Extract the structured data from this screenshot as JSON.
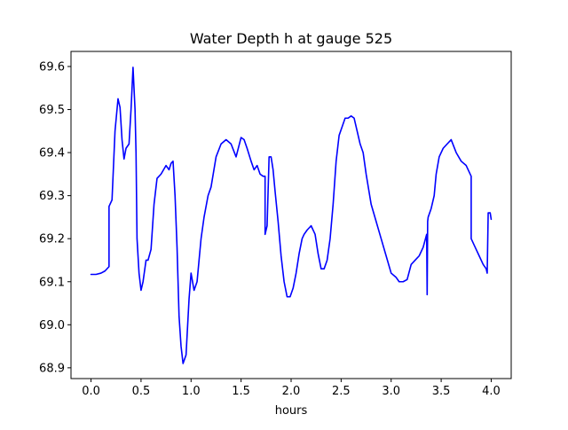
{
  "chart_data": {
    "type": "line",
    "title": "Water Depth h at gauge 525",
    "xlabel": "hours",
    "ylabel": "",
    "xlim": [
      -0.2,
      4.2
    ],
    "ylim": [
      68.875,
      69.635
    ],
    "xticks": [
      0.0,
      0.5,
      1.0,
      1.5,
      2.0,
      2.5,
      3.0,
      3.5,
      4.0
    ],
    "xtick_labels": [
      "0.0",
      "0.5",
      "1.0",
      "1.5",
      "2.0",
      "2.5",
      "3.0",
      "3.5",
      "4.0"
    ],
    "yticks": [
      68.9,
      69.0,
      69.1,
      69.2,
      69.3,
      69.4,
      69.5,
      69.6
    ],
    "ytick_labels": [
      "68.9",
      "69.0",
      "69.1",
      "69.2",
      "69.3",
      "69.4",
      "69.5",
      "69.6"
    ],
    "grid": false,
    "series": [
      {
        "color": "#0000ff",
        "x": [
          0.0,
          0.05,
          0.1,
          0.14,
          0.18,
          0.18,
          0.21,
          0.24,
          0.27,
          0.29,
          0.31,
          0.33,
          0.35,
          0.38,
          0.4,
          0.42,
          0.44,
          0.45,
          0.46,
          0.48,
          0.5,
          0.52,
          0.55,
          0.57,
          0.6,
          0.63,
          0.66,
          0.7,
          0.75,
          0.78,
          0.8,
          0.82,
          0.84,
          0.86,
          0.88,
          0.9,
          0.92,
          0.95,
          0.98,
          1.0,
          1.03,
          1.06,
          1.08,
          1.1,
          1.13,
          1.17,
          1.2,
          1.25,
          1.3,
          1.35,
          1.4,
          1.45,
          1.5,
          1.53,
          1.56,
          1.6,
          1.63,
          1.66,
          1.69,
          1.72,
          1.74,
          1.74,
          1.76,
          1.78,
          1.8,
          1.82,
          1.84,
          1.87,
          1.9,
          1.93,
          1.96,
          1.99,
          2.02,
          2.05,
          2.08,
          2.11,
          2.13,
          2.16,
          2.2,
          2.24,
          2.27,
          2.3,
          2.33,
          2.36,
          2.39,
          2.42,
          2.45,
          2.48,
          2.51,
          2.54,
          2.57,
          2.6,
          2.63,
          2.66,
          2.69,
          2.72,
          2.75,
          2.8,
          2.85,
          2.9,
          2.95,
          3.0,
          3.05,
          3.08,
          3.12,
          3.16,
          3.2,
          3.24,
          3.28,
          3.32,
          3.355,
          3.36,
          3.365,
          3.37,
          3.4,
          3.43,
          3.45,
          3.48,
          3.52,
          3.56,
          3.6,
          3.65,
          3.7,
          3.75,
          3.8,
          3.8,
          3.84,
          3.88,
          3.92,
          3.95,
          3.96,
          3.97,
          3.99,
          4.0
        ],
        "y": [
          69.117,
          69.117,
          69.12,
          69.125,
          69.135,
          69.275,
          69.29,
          69.45,
          69.525,
          69.505,
          69.43,
          69.385,
          69.41,
          69.42,
          69.5,
          69.598,
          69.5,
          69.4,
          69.2,
          69.12,
          69.08,
          69.1,
          69.15,
          69.15,
          69.175,
          69.28,
          69.34,
          69.35,
          69.37,
          69.36,
          69.375,
          69.38,
          69.3,
          69.18,
          69.02,
          68.95,
          68.91,
          68.93,
          69.06,
          69.12,
          69.08,
          69.1,
          69.15,
          69.2,
          69.25,
          69.3,
          69.32,
          69.39,
          69.42,
          69.43,
          69.42,
          69.39,
          69.435,
          69.43,
          69.41,
          69.38,
          69.36,
          69.37,
          69.35,
          69.345,
          69.345,
          69.21,
          69.23,
          69.39,
          69.39,
          69.36,
          69.31,
          69.24,
          69.16,
          69.1,
          69.065,
          69.065,
          69.085,
          69.12,
          69.165,
          69.2,
          69.21,
          69.22,
          69.23,
          69.21,
          69.165,
          69.13,
          69.13,
          69.15,
          69.2,
          69.28,
          69.38,
          69.44,
          69.46,
          69.48,
          69.48,
          69.485,
          69.48,
          69.45,
          69.42,
          69.4,
          69.35,
          69.28,
          69.24,
          69.2,
          69.16,
          69.12,
          69.11,
          69.1,
          69.1,
          69.105,
          69.14,
          69.15,
          69.16,
          69.18,
          69.21,
          69.07,
          69.24,
          69.25,
          69.27,
          69.3,
          69.35,
          69.39,
          69.41,
          69.42,
          69.43,
          69.4,
          69.38,
          69.37,
          69.345,
          69.2,
          69.18,
          69.16,
          69.14,
          69.13,
          69.12,
          69.26,
          69.26,
          69.245
        ]
      }
    ]
  }
}
